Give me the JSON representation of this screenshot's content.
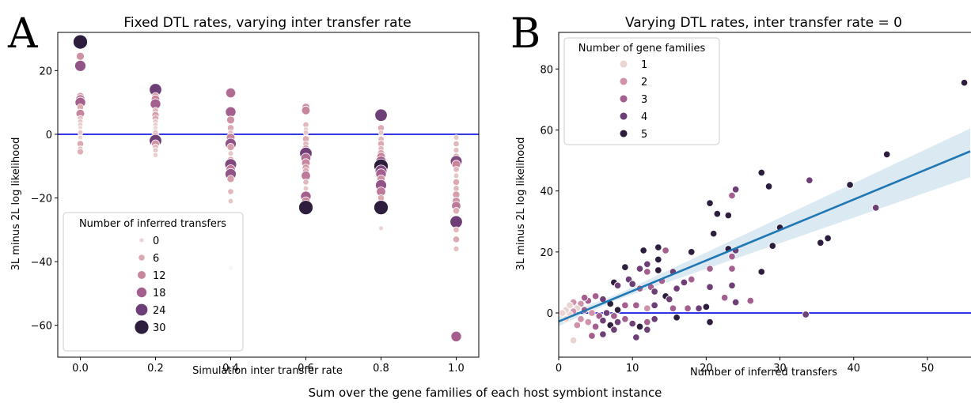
{
  "figure": {
    "caption": "Sum over the gene families of each host symbiont instance"
  },
  "chart_data": [
    {
      "type": "scatter",
      "panel_letter": "A",
      "title": "Fixed DTL rates, varying inter transfer rate",
      "xlabel": "Simulation inter transfer rate",
      "ylabel": "3L minus 2L log likelihood",
      "xlim": [
        -0.06,
        1.06
      ],
      "ylim": [
        -70,
        32
      ],
      "xticks": [
        0.0,
        0.2,
        0.4,
        0.6,
        0.8,
        1.0
      ],
      "xtick_labels": [
        "0.0",
        "0.2",
        "0.4",
        "0.6",
        "0.8",
        "1.0"
      ],
      "yticks": [
        -60,
        -40,
        -20,
        0,
        20
      ],
      "ytick_labels": [
        "−60",
        "−40",
        "−20",
        "0",
        "20"
      ],
      "hline": {
        "y": 0,
        "color": "#0000dd"
      },
      "grid": false,
      "legend": {
        "title": "Number of inferred transfers",
        "placement": "lower-left",
        "entries": [
          {
            "label": "0",
            "value": 0
          },
          {
            "label": "6",
            "value": 6
          },
          {
            "label": "12",
            "value": 12
          },
          {
            "label": "18",
            "value": 18
          },
          {
            "label": "24",
            "value": 24
          },
          {
            "label": "30",
            "value": 30
          }
        ]
      },
      "hue_colors": [
        "#ebd5d2",
        "#dcaab2",
        "#c8869e",
        "#a45f8e",
        "#6e3f76",
        "#2d1e3e"
      ],
      "size_range": [
        0,
        30
      ],
      "points": [
        {
          "x": 0.0,
          "y": 29,
          "t": 30
        },
        {
          "x": 0.0,
          "y": 24.5,
          "t": 10
        },
        {
          "x": 0.0,
          "y": 21.5,
          "t": 20
        },
        {
          "x": 0.0,
          "y": 12,
          "t": 8
        },
        {
          "x": 0.0,
          "y": 11,
          "t": 14
        },
        {
          "x": 0.0,
          "y": 10,
          "t": 18
        },
        {
          "x": 0.0,
          "y": 8.5,
          "t": 6
        },
        {
          "x": 0.0,
          "y": 7,
          "t": 4
        },
        {
          "x": 0.0,
          "y": 6.5,
          "t": 12
        },
        {
          "x": 0.0,
          "y": 5,
          "t": 3
        },
        {
          "x": 0.0,
          "y": 4,
          "t": 2
        },
        {
          "x": 0.0,
          "y": 3,
          "t": 1
        },
        {
          "x": 0.0,
          "y": 2,
          "t": 0
        },
        {
          "x": 0.0,
          "y": 1,
          "t": 0
        },
        {
          "x": 0.0,
          "y": 0.5,
          "t": 2
        },
        {
          "x": 0.0,
          "y": -1,
          "t": 0
        },
        {
          "x": 0.0,
          "y": -3,
          "t": 6
        },
        {
          "x": 0.0,
          "y": -4.5,
          "t": 2
        },
        {
          "x": 0.0,
          "y": -5.5,
          "t": 5
        },
        {
          "x": 0.2,
          "y": 14,
          "t": 24
        },
        {
          "x": 0.2,
          "y": 12,
          "t": 8
        },
        {
          "x": 0.2,
          "y": 11,
          "t": 12
        },
        {
          "x": 0.2,
          "y": 9.5,
          "t": 18
        },
        {
          "x": 0.2,
          "y": 7.5,
          "t": 4
        },
        {
          "x": 0.2,
          "y": 6,
          "t": 8
        },
        {
          "x": 0.2,
          "y": 5,
          "t": 6
        },
        {
          "x": 0.2,
          "y": 4,
          "t": 2
        },
        {
          "x": 0.2,
          "y": 3,
          "t": 1
        },
        {
          "x": 0.2,
          "y": 2,
          "t": 0
        },
        {
          "x": 0.2,
          "y": 0.5,
          "t": 3
        },
        {
          "x": 0.2,
          "y": -1,
          "t": 14
        },
        {
          "x": 0.2,
          "y": -2,
          "t": 24
        },
        {
          "x": 0.2,
          "y": -3,
          "t": 10
        },
        {
          "x": 0.2,
          "y": -4,
          "t": 4
        },
        {
          "x": 0.2,
          "y": -5,
          "t": 2
        },
        {
          "x": 0.2,
          "y": -6.5,
          "t": 1
        },
        {
          "x": 0.4,
          "y": 13,
          "t": 16
        },
        {
          "x": 0.4,
          "y": 7,
          "t": 18
        },
        {
          "x": 0.4,
          "y": 4.5,
          "t": 10
        },
        {
          "x": 0.4,
          "y": 2,
          "t": 6
        },
        {
          "x": 0.4,
          "y": 0.5,
          "t": 3
        },
        {
          "x": 0.4,
          "y": -1,
          "t": 12
        },
        {
          "x": 0.4,
          "y": -3,
          "t": 20
        },
        {
          "x": 0.4,
          "y": -4,
          "t": 8
        },
        {
          "x": 0.4,
          "y": -6,
          "t": 2
        },
        {
          "x": 0.4,
          "y": -8,
          "t": 6
        },
        {
          "x": 0.4,
          "y": -9.5,
          "t": 22
        },
        {
          "x": 0.4,
          "y": -11,
          "t": 14
        },
        {
          "x": 0.4,
          "y": -12.5,
          "t": 20
        },
        {
          "x": 0.4,
          "y": -14,
          "t": 8
        },
        {
          "x": 0.4,
          "y": -18,
          "t": 4
        },
        {
          "x": 0.4,
          "y": -21,
          "t": 2
        },
        {
          "x": 0.4,
          "y": -42,
          "t": 2
        },
        {
          "x": 0.6,
          "y": 8.5,
          "t": 10
        },
        {
          "x": 0.6,
          "y": 7.5,
          "t": 12
        },
        {
          "x": 0.6,
          "y": 3,
          "t": 4
        },
        {
          "x": 0.6,
          "y": 1.5,
          "t": 1
        },
        {
          "x": 0.6,
          "y": 0.5,
          "t": 2
        },
        {
          "x": 0.6,
          "y": -1.5,
          "t": 6
        },
        {
          "x": 0.6,
          "y": -3,
          "t": 4
        },
        {
          "x": 0.6,
          "y": -4.5,
          "t": 8
        },
        {
          "x": 0.6,
          "y": -6,
          "t": 24
        },
        {
          "x": 0.6,
          "y": -7.5,
          "t": 16
        },
        {
          "x": 0.6,
          "y": -9,
          "t": 12
        },
        {
          "x": 0.6,
          "y": -10.5,
          "t": 8
        },
        {
          "x": 0.6,
          "y": -11.5,
          "t": 6
        },
        {
          "x": 0.6,
          "y": -13,
          "t": 14
        },
        {
          "x": 0.6,
          "y": -15,
          "t": 4
        },
        {
          "x": 0.6,
          "y": -17,
          "t": 2
        },
        {
          "x": 0.6,
          "y": -19.5,
          "t": 18
        },
        {
          "x": 0.6,
          "y": -21,
          "t": 12
        },
        {
          "x": 0.6,
          "y": -23,
          "t": 30
        },
        {
          "x": 0.8,
          "y": 6,
          "t": 24
        },
        {
          "x": 0.8,
          "y": 2,
          "t": 6
        },
        {
          "x": 0.8,
          "y": 0.5,
          "t": 2
        },
        {
          "x": 0.8,
          "y": -1.5,
          "t": 4
        },
        {
          "x": 0.8,
          "y": -3,
          "t": 6
        },
        {
          "x": 0.8,
          "y": -4.5,
          "t": 4
        },
        {
          "x": 0.8,
          "y": -6,
          "t": 8
        },
        {
          "x": 0.8,
          "y": -7,
          "t": 12
        },
        {
          "x": 0.8,
          "y": -8.5,
          "t": 18
        },
        {
          "x": 0.8,
          "y": -10,
          "t": 30
        },
        {
          "x": 0.8,
          "y": -11.5,
          "t": 22
        },
        {
          "x": 0.8,
          "y": -12.5,
          "t": 18
        },
        {
          "x": 0.8,
          "y": -14,
          "t": 10
        },
        {
          "x": 0.8,
          "y": -16,
          "t": 20
        },
        {
          "x": 0.8,
          "y": -18,
          "t": 14
        },
        {
          "x": 0.8,
          "y": -20,
          "t": 6
        },
        {
          "x": 0.8,
          "y": -23,
          "t": 34
        },
        {
          "x": 0.8,
          "y": -29.5,
          "t": 0
        },
        {
          "x": 1.0,
          "y": -1,
          "t": 2
        },
        {
          "x": 1.0,
          "y": -3,
          "t": 4
        },
        {
          "x": 1.0,
          "y": -5,
          "t": 3
        },
        {
          "x": 1.0,
          "y": -7,
          "t": 6
        },
        {
          "x": 1.0,
          "y": -8.5,
          "t": 22
        },
        {
          "x": 1.0,
          "y": -9.5,
          "t": 12
        },
        {
          "x": 1.0,
          "y": -11,
          "t": 4
        },
        {
          "x": 1.0,
          "y": -13,
          "t": 2
        },
        {
          "x": 1.0,
          "y": -15,
          "t": 6
        },
        {
          "x": 1.0,
          "y": -17,
          "t": 4
        },
        {
          "x": 1.0,
          "y": -19,
          "t": 8
        },
        {
          "x": 1.0,
          "y": -21,
          "t": 10
        },
        {
          "x": 1.0,
          "y": -22.5,
          "t": 14
        },
        {
          "x": 1.0,
          "y": -24,
          "t": 6
        },
        {
          "x": 1.0,
          "y": -27.5,
          "t": 24
        },
        {
          "x": 1.0,
          "y": -30,
          "t": 4
        },
        {
          "x": 1.0,
          "y": -33,
          "t": 6
        },
        {
          "x": 1.0,
          "y": -36,
          "t": 3
        },
        {
          "x": 1.0,
          "y": -63.5,
          "t": 18
        }
      ]
    },
    {
      "type": "scatter",
      "panel_letter": "B",
      "title": "Varying DTL rates, inter transfer rate = 0",
      "xlabel": "Number of inferred transfers",
      "ylabel": "3L minus 2L log likelihood",
      "xlim": [
        0,
        55.8
      ],
      "ylim": [
        -14.5,
        92
      ],
      "xticks": [
        0,
        10,
        20,
        30,
        40,
        50
      ],
      "xtick_labels": [
        "0",
        "10",
        "20",
        "30",
        "40",
        "50"
      ],
      "yticks": [
        0,
        20,
        40,
        60,
        80
      ],
      "ytick_labels": [
        "0",
        "20",
        "40",
        "60",
        "80"
      ],
      "hline": {
        "y": 0,
        "color": "#0000dd"
      },
      "regression": {
        "intercept": -2.8,
        "slope": 1.0,
        "ci_low_end": 44.5,
        "ci_high_end": 60.5,
        "color": "#1f77b4"
      },
      "grid": false,
      "legend": {
        "title": "Number of gene families",
        "placement": "upper-left",
        "entries": [
          {
            "label": "1",
            "value": 1
          },
          {
            "label": "2",
            "value": 2
          },
          {
            "label": "3",
            "value": 3
          },
          {
            "label": "4",
            "value": 4
          },
          {
            "label": "5",
            "value": 5
          }
        ]
      },
      "hue_colors": [
        "#ebd5d2",
        "#cf92aa",
        "#a45f8e",
        "#6e3f76",
        "#2d1e3e"
      ],
      "points": [
        {
          "x": 55,
          "y": 75.5,
          "f": 5
        },
        {
          "x": 44.5,
          "y": 52,
          "f": 5
        },
        {
          "x": 34,
          "y": 43.5,
          "f": 4
        },
        {
          "x": 39.5,
          "y": 42,
          "f": 5
        },
        {
          "x": 27.5,
          "y": 46,
          "f": 5
        },
        {
          "x": 28.5,
          "y": 41.5,
          "f": 5
        },
        {
          "x": 24,
          "y": 40.5,
          "f": 4
        },
        {
          "x": 23.5,
          "y": 38.5,
          "f": 3
        },
        {
          "x": 20.5,
          "y": 36,
          "f": 5
        },
        {
          "x": 21.5,
          "y": 32.5,
          "f": 5
        },
        {
          "x": 23,
          "y": 32,
          "f": 5
        },
        {
          "x": 43,
          "y": 34.5,
          "f": 4
        },
        {
          "x": 30,
          "y": 28,
          "f": 5
        },
        {
          "x": 21,
          "y": 26,
          "f": 5
        },
        {
          "x": 36.5,
          "y": 24.5,
          "f": 5
        },
        {
          "x": 35.5,
          "y": 23,
          "f": 5
        },
        {
          "x": 29,
          "y": 22,
          "f": 5
        },
        {
          "x": 23,
          "y": 21,
          "f": 5
        },
        {
          "x": 24,
          "y": 20.5,
          "f": 4
        },
        {
          "x": 23.5,
          "y": 18.5,
          "f": 3
        },
        {
          "x": 18,
          "y": 20,
          "f": 5
        },
        {
          "x": 14.5,
          "y": 20.5,
          "f": 3
        },
        {
          "x": 13.5,
          "y": 21.5,
          "f": 5
        },
        {
          "x": 11.5,
          "y": 20.5,
          "f": 5
        },
        {
          "x": 13.5,
          "y": 17.5,
          "f": 5
        },
        {
          "x": 12,
          "y": 16,
          "f": 4
        },
        {
          "x": 9,
          "y": 15,
          "f": 5
        },
        {
          "x": 11,
          "y": 14.5,
          "f": 4
        },
        {
          "x": 12,
          "y": 13.5,
          "f": 3
        },
        {
          "x": 13.5,
          "y": 14,
          "f": 5
        },
        {
          "x": 15.5,
          "y": 13.5,
          "f": 4
        },
        {
          "x": 20.5,
          "y": 14.5,
          "f": 3
        },
        {
          "x": 23.5,
          "y": 14.5,
          "f": 3
        },
        {
          "x": 27.5,
          "y": 13.5,
          "f": 5
        },
        {
          "x": 18,
          "y": 11,
          "f": 3
        },
        {
          "x": 17,
          "y": 10,
          "f": 4
        },
        {
          "x": 23.5,
          "y": 9,
          "f": 4
        },
        {
          "x": 14,
          "y": 10.5,
          "f": 3
        },
        {
          "x": 16,
          "y": 8,
          "f": 4
        },
        {
          "x": 20.5,
          "y": 8.5,
          "f": 4
        },
        {
          "x": 12.5,
          "y": 8.5,
          "f": 3
        },
        {
          "x": 9.5,
          "y": 11,
          "f": 4
        },
        {
          "x": 7.5,
          "y": 10,
          "f": 5
        },
        {
          "x": 8,
          "y": 9,
          "f": 4
        },
        {
          "x": 10,
          "y": 9.5,
          "f": 4
        },
        {
          "x": 11,
          "y": 8,
          "f": 3
        },
        {
          "x": 13,
          "y": 7,
          "f": 4
        },
        {
          "x": 14.5,
          "y": 5.5,
          "f": 5
        },
        {
          "x": 15,
          "y": 4.5,
          "f": 4
        },
        {
          "x": 22.5,
          "y": 5,
          "f": 3
        },
        {
          "x": 26,
          "y": 4,
          "f": 3
        },
        {
          "x": 24,
          "y": 3.5,
          "f": 4
        },
        {
          "x": 20,
          "y": 2,
          "f": 5
        },
        {
          "x": 17.5,
          "y": 1.5,
          "f": 3
        },
        {
          "x": 15.5,
          "y": 1.5,
          "f": 3
        },
        {
          "x": 13,
          "y": 2.5,
          "f": 4
        },
        {
          "x": 12,
          "y": 1.5,
          "f": 2
        },
        {
          "x": 10.5,
          "y": 2.5,
          "f": 3
        },
        {
          "x": 9,
          "y": 2.5,
          "f": 3
        },
        {
          "x": 7,
          "y": 3,
          "f": 5
        },
        {
          "x": 6,
          "y": 4.5,
          "f": 4
        },
        {
          "x": 5,
          "y": 5.5,
          "f": 3
        },
        {
          "x": 4,
          "y": 4,
          "f": 3
        },
        {
          "x": 3,
          "y": 3,
          "f": 2
        },
        {
          "x": 2.5,
          "y": 1.5,
          "f": 1
        },
        {
          "x": 2,
          "y": 0.5,
          "f": 2
        },
        {
          "x": 1.5,
          "y": -0.5,
          "f": 1
        },
        {
          "x": 1,
          "y": 1,
          "f": 1
        },
        {
          "x": 2,
          "y": 3.5,
          "f": 2
        },
        {
          "x": 3.5,
          "y": 1,
          "f": 3
        },
        {
          "x": 4.5,
          "y": 0,
          "f": 2
        },
        {
          "x": 5.5,
          "y": -1,
          "f": 3
        },
        {
          "x": 6.5,
          "y": 0,
          "f": 4
        },
        {
          "x": 7.5,
          "y": -1,
          "f": 3
        },
        {
          "x": 8,
          "y": 1,
          "f": 5
        },
        {
          "x": 3,
          "y": -2,
          "f": 2
        },
        {
          "x": 4,
          "y": -3,
          "f": 2
        },
        {
          "x": 5,
          "y": -4.5,
          "f": 3
        },
        {
          "x": 6,
          "y": -2.5,
          "f": 4
        },
        {
          "x": 7,
          "y": -4,
          "f": 5
        },
        {
          "x": 8,
          "y": -3,
          "f": 4
        },
        {
          "x": 9,
          "y": -2,
          "f": 3
        },
        {
          "x": 10,
          "y": -3.5,
          "f": 4
        },
        {
          "x": 11,
          "y": -4.5,
          "f": 5
        },
        {
          "x": 12,
          "y": -3,
          "f": 3
        },
        {
          "x": 13,
          "y": -2,
          "f": 4
        },
        {
          "x": 2,
          "y": -9,
          "f": 1
        },
        {
          "x": 4.5,
          "y": -7.5,
          "f": 3
        },
        {
          "x": 6,
          "y": -7,
          "f": 4
        },
        {
          "x": 10.5,
          "y": -8,
          "f": 4
        },
        {
          "x": 12,
          "y": -5.5,
          "f": 4
        },
        {
          "x": 7.5,
          "y": -5.5,
          "f": 4
        },
        {
          "x": 16,
          "y": -1.5,
          "f": 5
        },
        {
          "x": 19,
          "y": 1.5,
          "f": 4
        },
        {
          "x": 20.5,
          "y": -3,
          "f": 5
        },
        {
          "x": 33.5,
          "y": -0.5,
          "f": 4
        },
        {
          "x": 1,
          "y": -2,
          "f": 1
        },
        {
          "x": 2.5,
          "y": -4,
          "f": 2
        },
        {
          "x": 3.5,
          "y": 5,
          "f": 3
        },
        {
          "x": 1.5,
          "y": 2.5,
          "f": 1
        },
        {
          "x": 0.5,
          "y": 0,
          "f": 1
        }
      ]
    }
  ]
}
